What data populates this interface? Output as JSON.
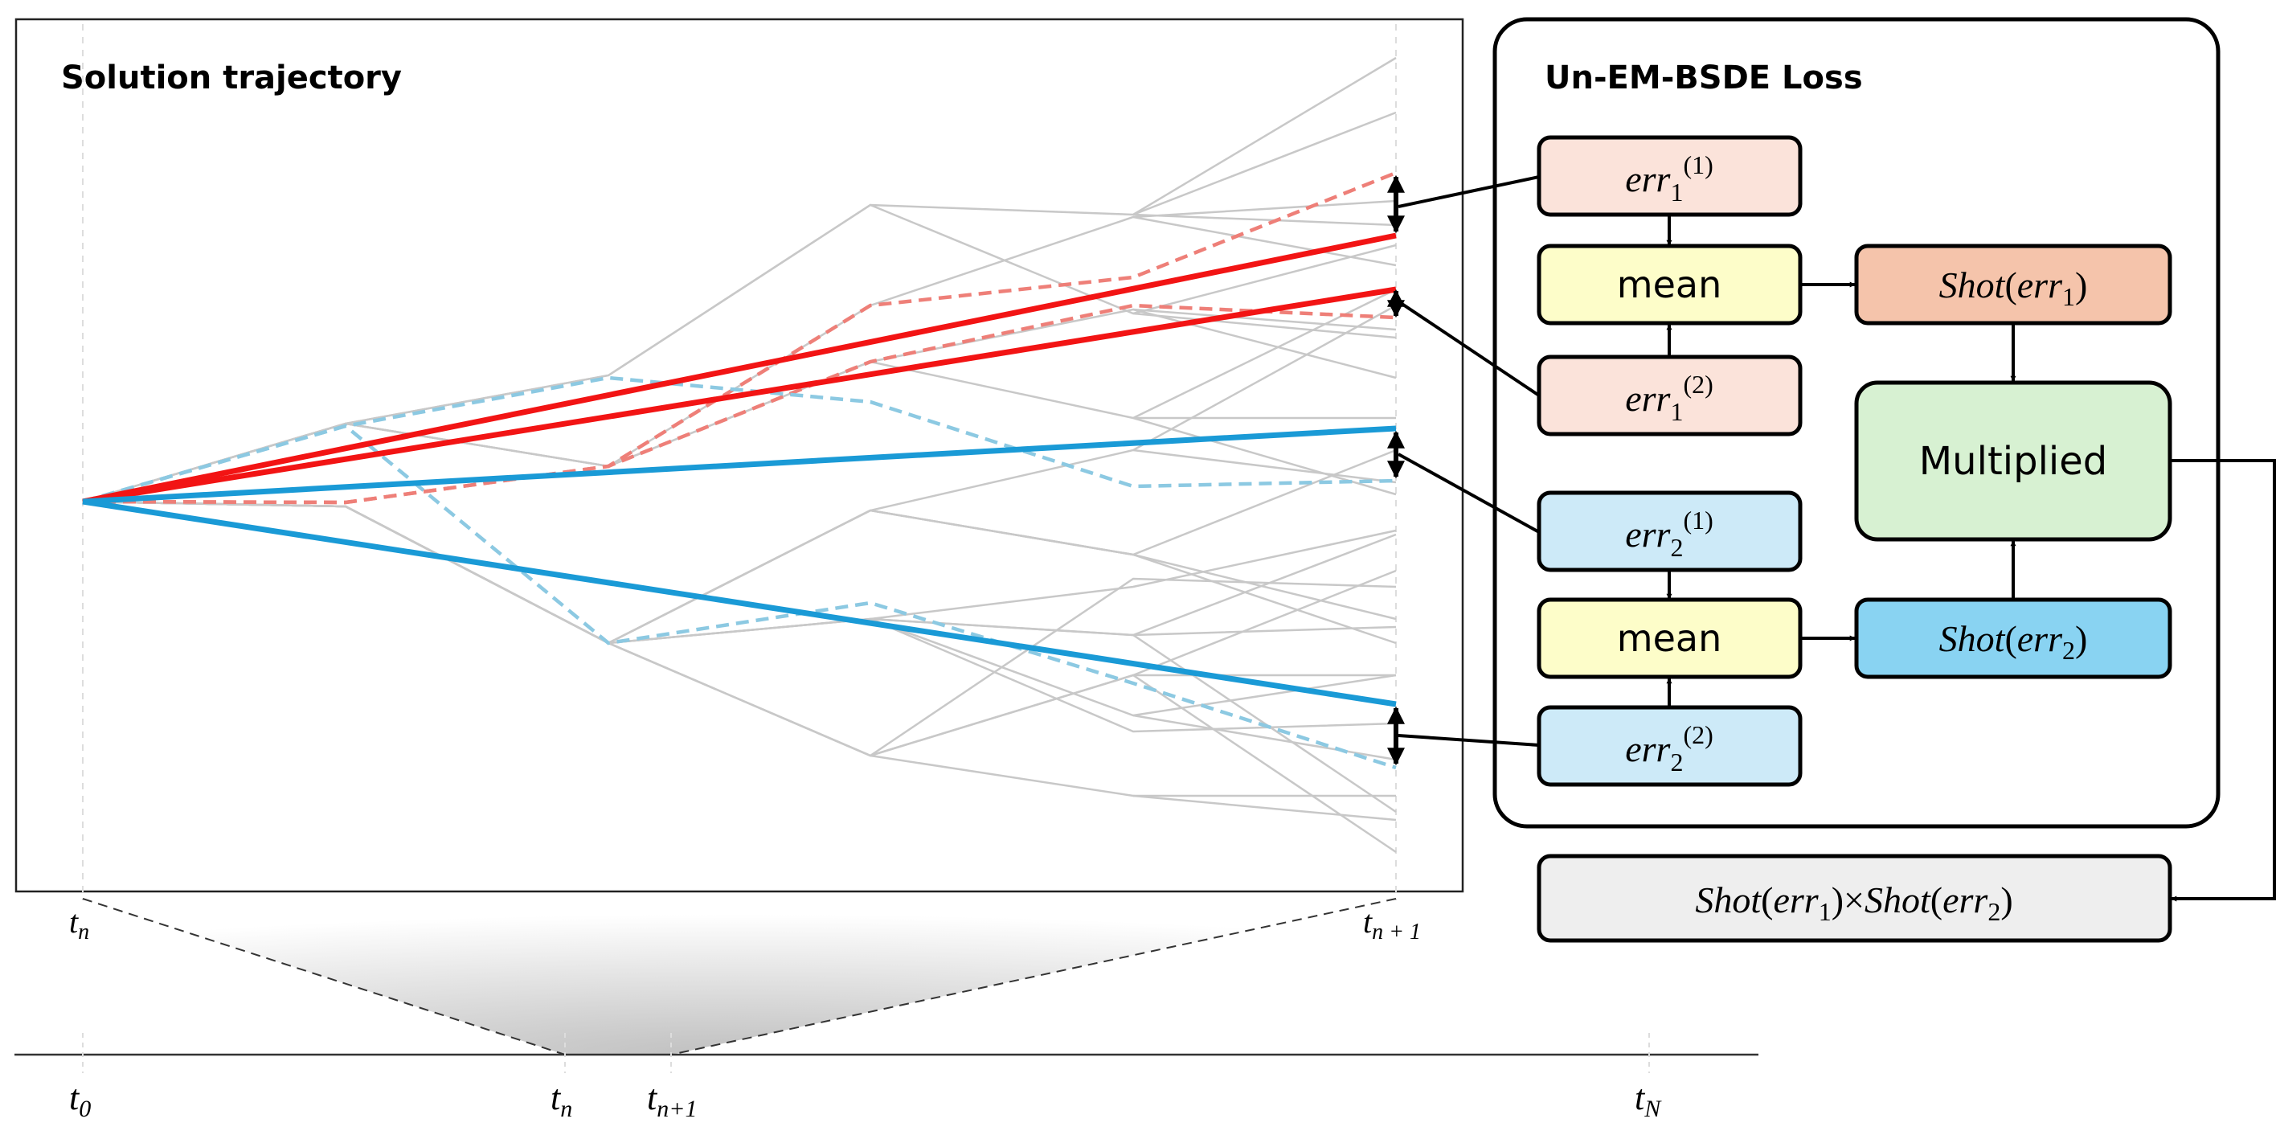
{
  "trajectory_panel": {
    "title": "Solution trajectory"
  },
  "loss_panel": {
    "title": "Un-EM-BSDE Loss",
    "mean_label": "mean",
    "multiplied_label": "Multiplied",
    "shot_word": "Shot",
    "err_word": "err",
    "times_symbol": "×"
  },
  "time_labels": {
    "t_symbol": "t",
    "upper_start_sub": "n",
    "upper_end_sub": "n + 1",
    "lower_t0_sub": "0",
    "lower_tn_sub": "n",
    "lower_tn1_sub": "n+1",
    "lower_tN_sub": "N"
  },
  "colors": {
    "red_solid": "#f21414",
    "red_dashed": "#ee7f78",
    "blue_solid": "#1a9ad6",
    "blue_dashed": "#8cc9e2",
    "gray_path": "#c8c8c8",
    "err1_fill": "#fbe3da",
    "err2_fill": "#cdeaf8",
    "mean_fill": "#fdfdc9",
    "shot1_fill": "#f5c4ab",
    "shot2_fill": "#89d3f2",
    "multiplied_fill": "#d7f1d2",
    "product_fill": "#eeeeee"
  }
}
